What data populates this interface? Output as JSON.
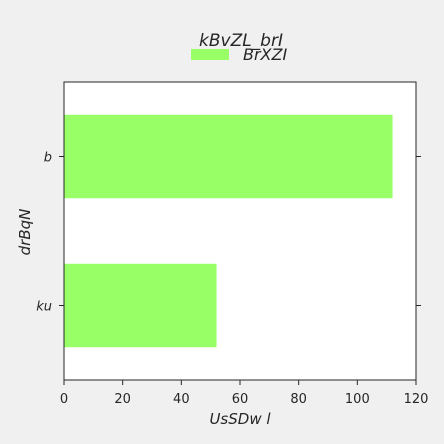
{
  "chart_data": {
    "type": "bar",
    "orientation": "horizontal",
    "title": "kBvZL_brI",
    "xlabel": "UsSDw l",
    "ylabel": "drBqN",
    "categories": [
      "ku",
      "b"
    ],
    "series": [
      {
        "name": "BrXZI",
        "values": [
          52,
          112
        ],
        "color": "#99ff66"
      }
    ],
    "xlim": [
      0,
      120
    ],
    "xticks": [
      0,
      20,
      40,
      60,
      80,
      100,
      120
    ],
    "grid": false,
    "legend_position": "top-center",
    "colors": {
      "background": "#f0f0f0",
      "plot_area": "#ffffff",
      "bar": "#99ff66",
      "axis": "#262626"
    }
  }
}
